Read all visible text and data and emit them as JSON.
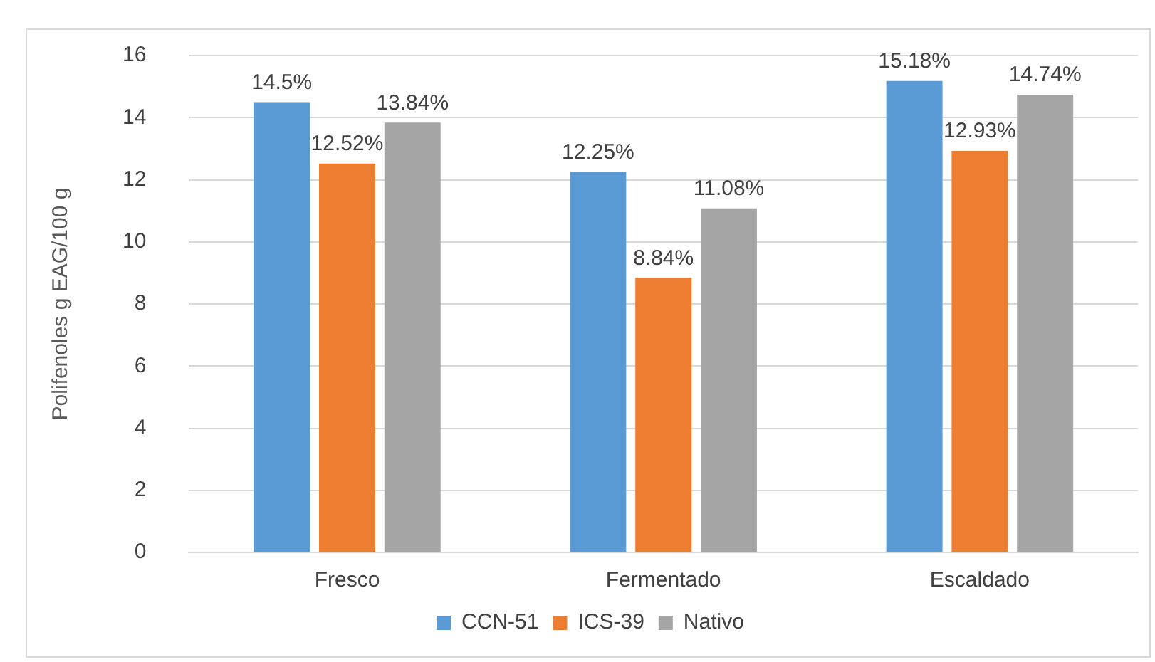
{
  "chart_data": {
    "type": "bar",
    "ylabel": "Polifenoles g EAG/100 g",
    "categories": [
      "Fresco",
      "Fermentado",
      "Escaldado"
    ],
    "series": [
      {
        "name": "CCN-51",
        "color": "#5b9bd5",
        "values": [
          14.5,
          12.25,
          15.18
        ],
        "value_labels": [
          "14.5%",
          "12.25%",
          "15.18%"
        ]
      },
      {
        "name": "ICS-39",
        "color": "#ed7d31",
        "values": [
          12.52,
          8.84,
          12.93
        ],
        "value_labels": [
          "12.52%",
          "8.84%",
          "12.93%"
        ]
      },
      {
        "name": "Nativo",
        "color": "#a5a5a5",
        "values": [
          13.84,
          11.08,
          14.74
        ],
        "value_labels": [
          "13.84%",
          "11.08%",
          "14.74%"
        ]
      }
    ],
    "ylim": [
      0,
      16
    ],
    "yticks": [
      0,
      2,
      4,
      6,
      8,
      10,
      12,
      14,
      16
    ],
    "grid": "y",
    "legend": "bottom"
  }
}
